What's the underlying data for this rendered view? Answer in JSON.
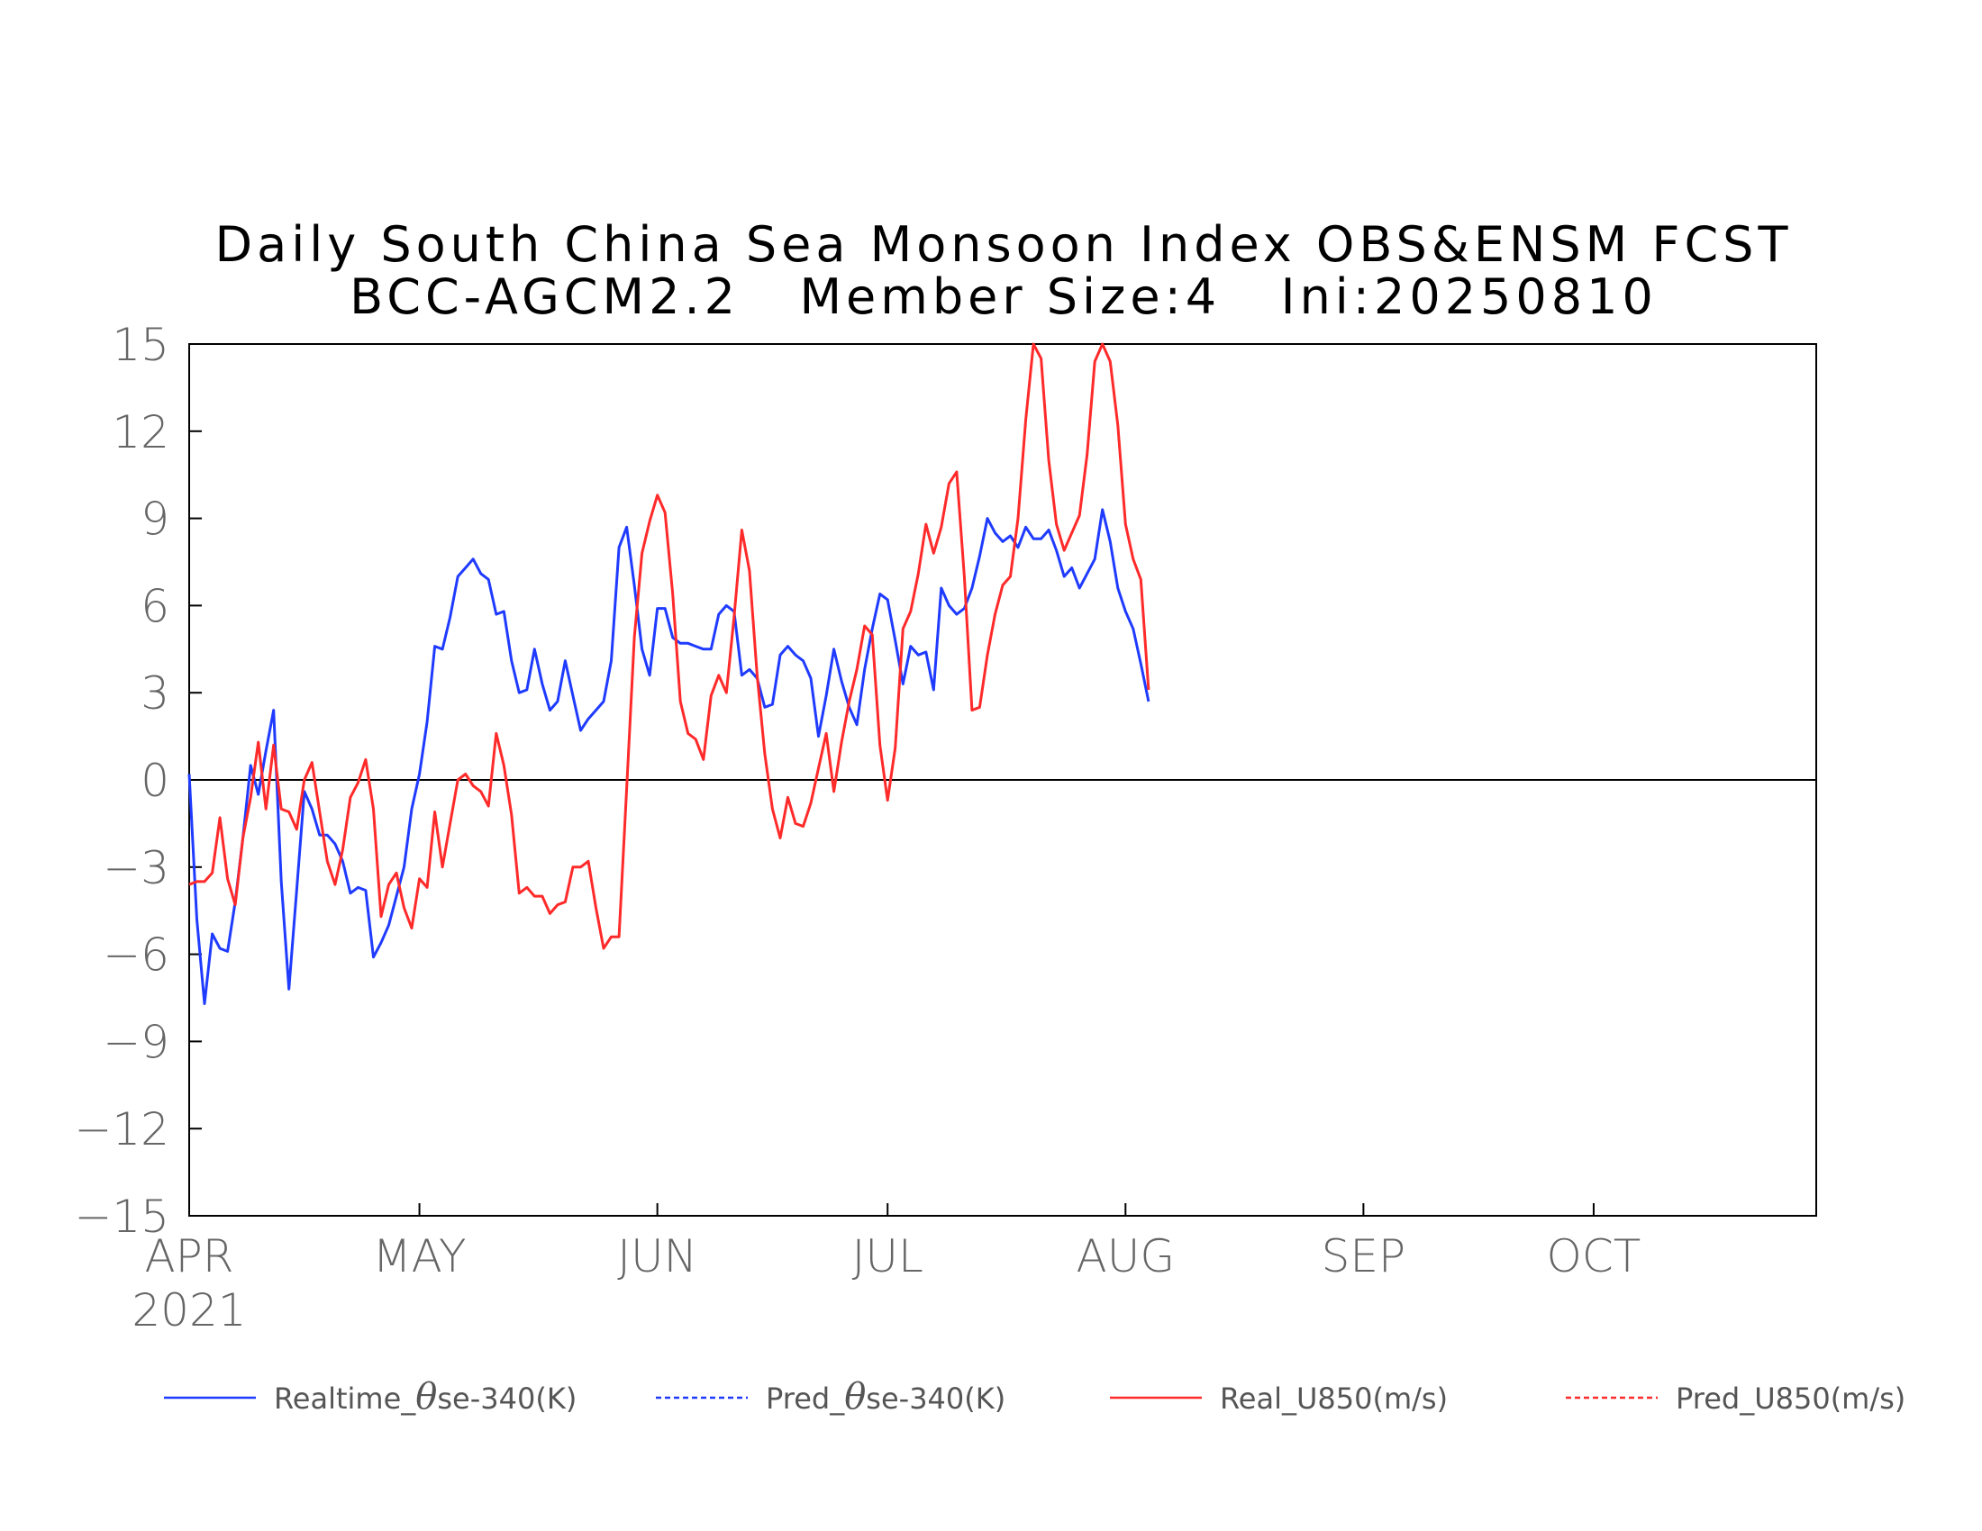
{
  "chart_data": {
    "type": "line",
    "title": "Daily South China Sea Monsoon Index OBS&ENSM FCST",
    "subtitle": "BCC-AGCM2.2   Member Size:4   Ini:20250810",
    "xlabel": "",
    "ylabel": "",
    "x_ticks": [
      "APR",
      "MAY",
      "JUN",
      "JUL",
      "AUG",
      "SEP",
      "OCT"
    ],
    "x_tick_sub": "2021",
    "x_tick_days": [
      0,
      30,
      61,
      91,
      122,
      153,
      183
    ],
    "xlim_days": [
      0,
      212
    ],
    "ylim": [
      -15,
      15
    ],
    "y_ticks": [
      15,
      12,
      9,
      6,
      3,
      0,
      -3,
      -6,
      -9,
      -12,
      -15
    ],
    "zero_line": true,
    "grid": false,
    "legend_position": "bottom",
    "series": [
      {
        "name": "Realtime_θse-340(K)",
        "legend_prefix": "Realtime_",
        "legend_suffix": "se-340(K)",
        "color": "#1f3bff",
        "dash": "solid",
        "x": [
          0,
          1,
          2,
          3,
          4,
          5,
          6,
          7,
          8,
          9,
          10,
          11,
          12,
          13,
          14,
          15,
          16,
          17,
          18,
          19,
          20,
          21,
          22,
          23,
          24,
          25,
          26,
          27,
          28,
          29,
          30,
          31,
          32,
          33,
          34,
          35,
          36,
          37,
          38,
          39,
          40,
          41,
          42,
          43,
          44,
          45,
          46,
          47,
          48,
          49,
          50,
          51,
          52,
          53,
          54,
          55,
          56,
          57,
          58,
          59,
          60,
          61,
          62,
          63,
          64,
          65,
          66,
          67,
          68,
          69,
          70,
          71,
          72,
          73,
          74,
          75,
          76,
          77,
          78,
          79,
          80,
          81,
          82,
          83,
          84,
          85,
          86,
          87,
          88,
          89,
          90,
          91,
          92,
          93,
          94,
          95,
          96,
          97,
          98,
          99,
          100,
          101,
          102,
          103,
          104,
          105,
          106,
          107,
          108,
          109,
          110,
          111,
          112,
          113,
          114,
          115,
          116,
          117,
          118,
          119,
          120,
          121,
          122,
          123,
          124,
          125
        ],
        "values": [
          0.2,
          -4.8,
          -7.7,
          -5.3,
          -5.8,
          -5.9,
          -4.2,
          -2.0,
          0.5,
          -0.5,
          1.0,
          2.4,
          -3.5,
          -7.2,
          -3.8,
          -0.4,
          -1.0,
          -1.9,
          -1.9,
          -2.2,
          -2.8,
          -3.9,
          -3.7,
          -3.8,
          -6.1,
          -5.6,
          -5.0,
          -4.0,
          -3.0,
          -1.0,
          0.2,
          2.0,
          4.6,
          4.5,
          5.6,
          7.0,
          7.3,
          7.6,
          7.1,
          6.9,
          5.7,
          5.8,
          4.1,
          3.0,
          3.1,
          4.5,
          3.3,
          2.4,
          2.7,
          4.1,
          2.9,
          1.7,
          2.1,
          2.4,
          2.7,
          4.1,
          8.0,
          8.7,
          6.7,
          4.5,
          3.6,
          5.9,
          5.9,
          4.9,
          4.7,
          4.7,
          4.6,
          4.5,
          4.5,
          5.7,
          6.0,
          5.8,
          3.6,
          3.8,
          3.5,
          2.5,
          2.6,
          4.3,
          4.6,
          4.3,
          4.1,
          3.5,
          1.5,
          2.9,
          4.5,
          3.4,
          2.5,
          1.9,
          3.8,
          5.2,
          6.4,
          6.2,
          4.8,
          3.3,
          4.6,
          4.3,
          4.4,
          3.1,
          6.6,
          6.0,
          5.7,
          5.9,
          6.6,
          7.7,
          9.0,
          8.5,
          8.2,
          8.4,
          8.0,
          8.7,
          8.3,
          8.3,
          8.6,
          7.9,
          7.0,
          7.3,
          6.6,
          7.1,
          7.6,
          9.3,
          8.2,
          6.6,
          5.8,
          5.2,
          4.0,
          2.7
        ]
      },
      {
        "name": "Pred_θse-340(K)",
        "legend_prefix": "Pred_",
        "legend_suffix": "se-340(K)",
        "color": "#1f3bff",
        "dash": "dashed",
        "x": [],
        "values": []
      },
      {
        "name": "Real_U850(m/s)",
        "legend_prefix": "Real_U850(m/s)",
        "legend_suffix": "",
        "color": "#ff2a2a",
        "dash": "solid",
        "x": [
          0,
          1,
          2,
          3,
          4,
          5,
          6,
          7,
          8,
          9,
          10,
          11,
          12,
          13,
          14,
          15,
          16,
          17,
          18,
          19,
          20,
          21,
          22,
          23,
          24,
          25,
          26,
          27,
          28,
          29,
          30,
          31,
          32,
          33,
          34,
          35,
          36,
          37,
          38,
          39,
          40,
          41,
          42,
          43,
          44,
          45,
          46,
          47,
          48,
          49,
          50,
          51,
          52,
          53,
          54,
          55,
          56,
          57,
          58,
          59,
          60,
          61,
          62,
          63,
          64,
          65,
          66,
          67,
          68,
          69,
          70,
          71,
          72,
          73,
          74,
          75,
          76,
          77,
          78,
          79,
          80,
          81,
          82,
          83,
          84,
          85,
          86,
          87,
          88,
          89,
          90,
          91,
          92,
          93,
          94,
          95,
          96,
          97,
          98,
          99,
          100,
          101,
          102,
          103,
          104,
          105,
          106,
          107,
          108,
          109,
          110,
          111,
          112,
          113,
          114,
          115,
          116,
          117,
          118,
          119,
          120,
          121,
          122,
          123,
          124,
          125
        ],
        "values": [
          -3.6,
          -3.5,
          -3.5,
          -3.2,
          -1.3,
          -3.4,
          -4.3,
          -2.0,
          -0.6,
          1.3,
          -1.0,
          1.2,
          -1.0,
          -1.1,
          -1.7,
          0.0,
          0.6,
          -1.1,
          -2.8,
          -3.6,
          -2.4,
          -0.6,
          -0.1,
          0.7,
          -1.0,
          -4.7,
          -3.6,
          -3.2,
          -4.4,
          -5.1,
          -3.4,
          -3.7,
          -1.1,
          -3.0,
          -1.5,
          0.0,
          0.2,
          -0.2,
          -0.4,
          -0.9,
          1.6,
          0.5,
          -1.2,
          -3.9,
          -3.7,
          -4.0,
          -4.0,
          -4.6,
          -4.3,
          -4.2,
          -3.0,
          -3.0,
          -2.8,
          -4.4,
          -5.8,
          -5.4,
          -5.4,
          -0.3,
          4.9,
          7.8,
          8.9,
          9.8,
          9.2,
          6.4,
          2.7,
          1.6,
          1.4,
          0.7,
          2.9,
          3.6,
          3.0,
          5.6,
          8.6,
          7.2,
          3.6,
          0.9,
          -1.0,
          -2.0,
          -0.6,
          -1.5,
          -1.6,
          -0.8,
          0.4,
          1.6,
          -0.4,
          1.3,
          2.7,
          3.8,
          5.3,
          5.0,
          1.2,
          -0.7,
          1.1,
          5.2,
          5.8,
          7.1,
          8.8,
          7.8,
          8.7,
          10.2,
          10.6,
          7.0,
          2.4,
          2.5,
          4.3,
          5.7,
          6.7,
          7.0,
          9.0,
          12.4,
          15.0,
          14.5,
          11.0,
          8.8,
          7.9,
          8.5,
          9.1,
          11.2,
          14.4,
          15.0,
          14.4,
          12.2,
          8.8,
          7.6,
          6.9,
          3.1
        ]
      },
      {
        "name": "Pred_U850(m/s)",
        "legend_prefix": "Pred_U850(m/s)",
        "legend_suffix": "",
        "color": "#ff2a2a",
        "dash": "dashed",
        "x": [],
        "values": []
      }
    ]
  }
}
